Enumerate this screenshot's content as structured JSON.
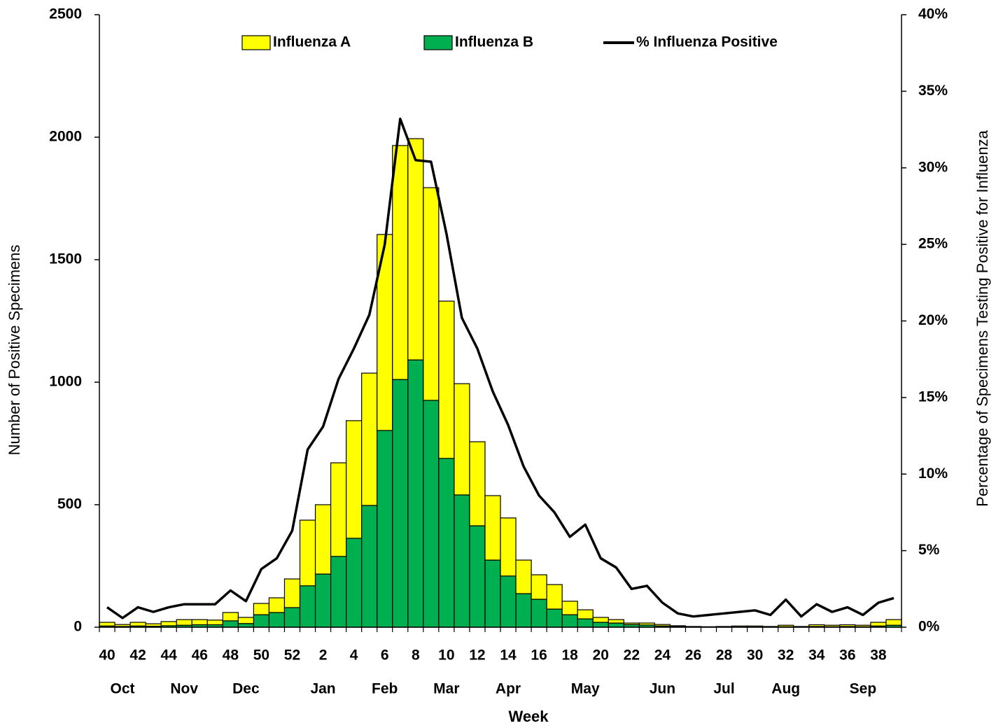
{
  "chart_data": {
    "type": "bar",
    "x_label": "Week",
    "y_label": "Number of Positive Specimens",
    "y2_label": "Percentage of Specimens Testing Positive for Influenza",
    "categories": [
      "40",
      null,
      "42",
      null,
      "44",
      null,
      "46",
      null,
      "48",
      null,
      "50",
      null,
      "52",
      null,
      "2",
      null,
      "4",
      null,
      "6",
      null,
      "8",
      null,
      "10",
      null,
      "12",
      null,
      "14",
      null,
      "16",
      null,
      "18",
      null,
      "20",
      null,
      "22",
      null,
      "24",
      null,
      "26",
      null,
      "28",
      null,
      "30",
      null,
      "32",
      null,
      "34",
      null,
      "36",
      null,
      "38",
      null
    ],
    "month_labels": [
      null,
      "Oct",
      null,
      null,
      null,
      "Nov",
      null,
      null,
      null,
      "Dec",
      null,
      null,
      null,
      null,
      "Jan",
      null,
      null,
      null,
      "Feb",
      null,
      null,
      null,
      "Mar",
      null,
      null,
      null,
      "Apr",
      null,
      null,
      null,
      null,
      "May",
      null,
      null,
      null,
      null,
      "Jun",
      null,
      null,
      null,
      "Jul",
      null,
      null,
      null,
      "Aug",
      null,
      null,
      null,
      null,
      "Sep",
      null,
      null
    ],
    "series": [
      {
        "name": "Influenza A",
        "color": "#ffff00",
        "values": [
          15,
          8,
          15,
          10,
          17,
          23,
          21,
          19,
          34,
          25,
          46,
          60,
          117,
          268,
          283,
          382,
          480,
          540,
          800,
          955,
          903,
          868,
          642,
          454,
          343,
          263,
          237,
          137,
          100,
          100,
          55,
          37,
          20,
          14,
          6,
          8,
          6,
          3,
          2,
          1,
          2,
          4,
          4,
          2,
          6,
          2,
          7,
          6,
          7,
          6,
          15,
          23
        ]
      },
      {
        "name": "Influenza B",
        "color": "#00b050",
        "values": [
          5,
          3,
          5,
          4,
          6,
          8,
          10,
          10,
          26,
          15,
          51,
          60,
          80,
          169,
          217,
          289,
          363,
          497,
          803,
          1011,
          1091,
          926,
          689,
          540,
          414,
          274,
          209,
          137,
          114,
          74,
          51,
          34,
          20,
          17,
          11,
          9,
          5,
          3,
          1,
          1,
          1,
          1,
          1,
          1,
          2,
          1,
          3,
          2,
          3,
          2,
          5,
          8
        ]
      },
      {
        "name": "% Influenza Positive",
        "color": "#000000",
        "type": "line",
        "axis": "y2",
        "values": [
          1.3,
          0.6,
          1.3,
          1.0,
          1.3,
          1.5,
          1.5,
          1.5,
          2.4,
          1.7,
          3.8,
          4.5,
          6.3,
          11.6,
          13.1,
          16.2,
          18.2,
          20.4,
          25.0,
          33.2,
          30.5,
          30.4,
          25.7,
          20.2,
          18.2,
          15.4,
          13.2,
          10.5,
          8.6,
          7.5,
          5.9,
          6.7,
          4.5,
          3.9,
          2.5,
          2.7,
          1.6,
          0.9,
          0.7,
          0.8,
          0.9,
          1.0,
          1.1,
          0.8,
          1.8,
          0.7,
          1.5,
          1.0,
          1.3,
          0.8,
          1.6,
          1.9
        ]
      }
    ],
    "ylim": [
      0,
      2500
    ],
    "yticks": [
      0,
      500,
      1000,
      1500,
      2000,
      2500
    ],
    "y2lim": [
      0,
      40
    ],
    "y2ticks": [
      {
        "value": 0,
        "label": "0%"
      },
      {
        "value": 5,
        "label": "5%"
      },
      {
        "value": 10,
        "label": "10%"
      },
      {
        "value": 15,
        "label": "15%"
      },
      {
        "value": 20,
        "label": "20%"
      },
      {
        "value": 25,
        "label": "25%"
      },
      {
        "value": 30,
        "label": "30%"
      },
      {
        "value": 35,
        "label": "35%"
      },
      {
        "value": 40,
        "label": "40%"
      }
    ],
    "grid": false,
    "legend": "top"
  }
}
